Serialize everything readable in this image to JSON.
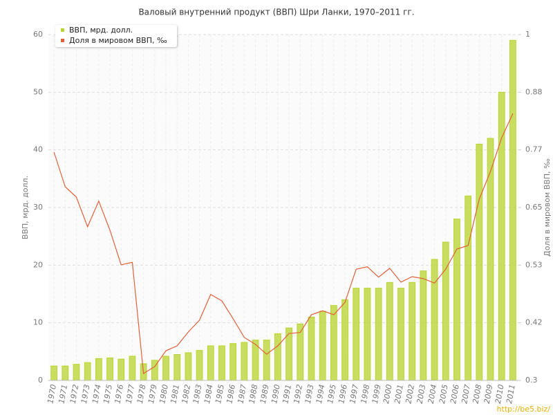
{
  "chart_data": {
    "type": "bar-line",
    "title": "Валовый внутренний продукт (ВВП) Шри Ланки, 1970–2011 гг.",
    "y_label": "ВВП, мрд. долл.",
    "y2_label": "Доля в мировом ВВП, ‰",
    "watermark": "http://be5.biz/",
    "categories": [
      "1970",
      "1971",
      "1972",
      "1973",
      "1974",
      "1975",
      "1976",
      "1977",
      "1978",
      "1979",
      "1980",
      "1981",
      "1982",
      "1983",
      "1984",
      "1985",
      "1986",
      "1987",
      "1988",
      "1989",
      "1990",
      "1991",
      "1992",
      "1993",
      "1994",
      "1995",
      "1996",
      "1997",
      "1998",
      "1999",
      "2000",
      "2001",
      "2002",
      "2003",
      "2004",
      "2005",
      "2006",
      "2007",
      "2008",
      "2009",
      "2010",
      "2011"
    ],
    "series": [
      {
        "name": "ВВП, мрд. долл.",
        "type": "bar",
        "color": "#b8d42e",
        "values": [
          2.5,
          2.5,
          2.8,
          3.1,
          3.8,
          3.9,
          3.7,
          4.2,
          2.9,
          3.5,
          4.2,
          4.5,
          4.8,
          5.2,
          6.0,
          6.0,
          6.4,
          6.6,
          7.0,
          7.0,
          8.1,
          9.1,
          9.8,
          11.0,
          12.0,
          13.0,
          14.0,
          16.0,
          16.0,
          16.0,
          17.0,
          16.0,
          17.0,
          19.0,
          21.0,
          24.0,
          28.0,
          32.0,
          41.0,
          42.0,
          50.0,
          59.0
        ]
      },
      {
        "name": "Доля в мировом ВВП, ‰",
        "type": "line",
        "axis": "y2",
        "color": "#e0603a",
        "values": [
          0.762,
          0.692,
          0.671,
          0.611,
          0.663,
          0.604,
          0.534,
          0.539,
          0.314,
          0.328,
          0.36,
          0.37,
          0.398,
          0.422,
          0.474,
          0.461,
          0.425,
          0.387,
          0.373,
          0.353,
          0.37,
          0.395,
          0.397,
          0.433,
          0.441,
          0.433,
          0.458,
          0.525,
          0.53,
          0.509,
          0.527,
          0.499,
          0.51,
          0.506,
          0.497,
          0.525,
          0.566,
          0.573,
          0.667,
          0.723,
          0.791,
          0.84
        ]
      }
    ],
    "ylim": [
      0,
      60
    ],
    "yticks": [
      0,
      10,
      20,
      30,
      40,
      50,
      60
    ],
    "y2lim": [
      0.3,
      1
    ],
    "y2ticks": [
      0.3,
      {
        "value": 0.4167,
        "label": "0.42"
      },
      {
        "value": 0.5333,
        "label": "0.53"
      },
      0.65,
      {
        "value": 0.7667,
        "label": "0.77"
      },
      {
        "value": 0.8833,
        "label": "0.88"
      },
      1
    ],
    "grid": true,
    "legend": "top-left"
  }
}
